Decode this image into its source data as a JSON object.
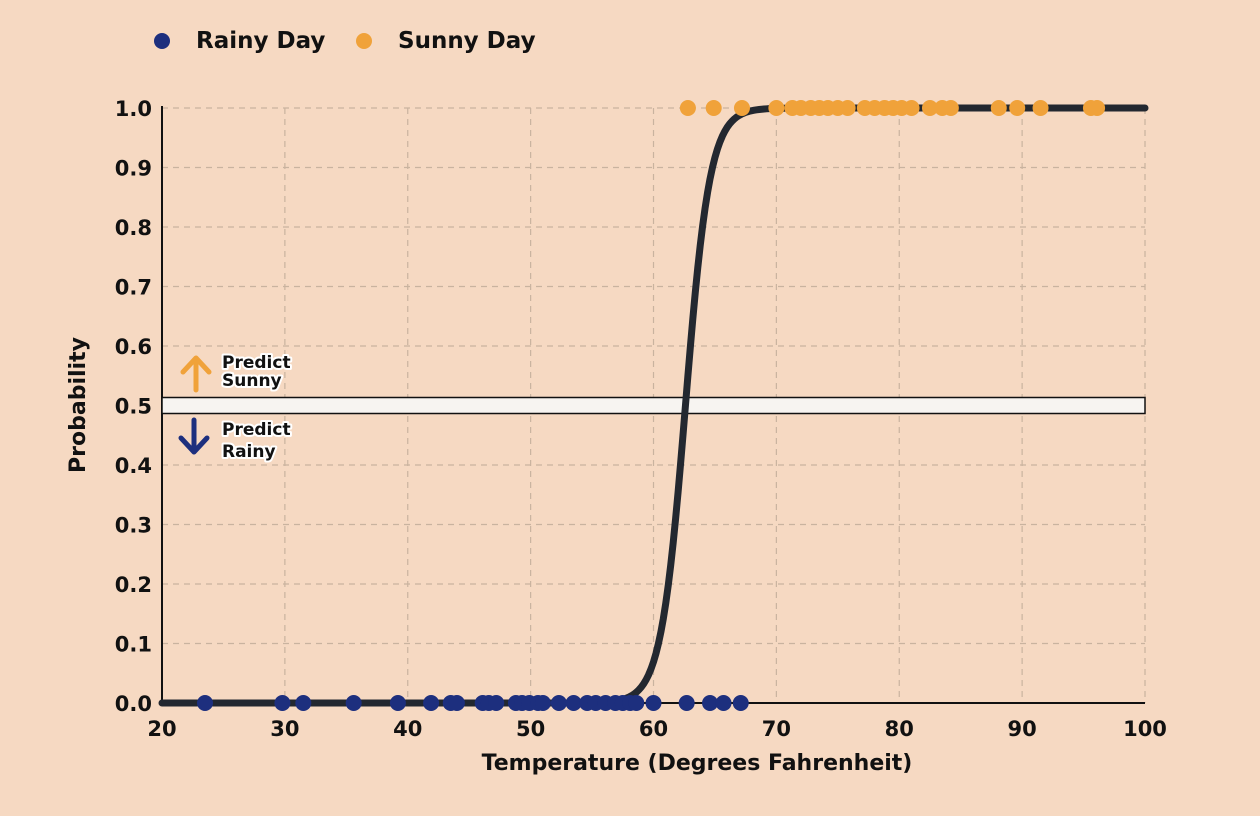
{
  "chart_data": {
    "type": "scatter",
    "xlabel": "Temperature (Degrees Fahrenheit)",
    "ylabel": "Probability",
    "xlim": [
      20,
      100
    ],
    "ylim": [
      0,
      1
    ],
    "x_ticks": [
      "20",
      "30",
      "40",
      "50",
      "60",
      "70",
      "80",
      "90",
      "100"
    ],
    "y_ticks": [
      "0.0",
      "0.1",
      "0.2",
      "0.3",
      "0.4",
      "0.5",
      "0.6",
      "0.7",
      "0.8",
      "0.9",
      "1.0"
    ],
    "grid": true,
    "legend_position": "top-left",
    "threshold": 0.5,
    "series": [
      {
        "name": "Rainy Day",
        "color": "#1d2f7e",
        "y": 0,
        "x": [
          23.5,
          29.8,
          31.5,
          35.6,
          39.2,
          41.9,
          43.5,
          44.0,
          46.1,
          46.6,
          47.2,
          48.8,
          49.3,
          49.9,
          50.6,
          51.0,
          52.3,
          53.5,
          54.6,
          55.3,
          56.1,
          56.9,
          57.5,
          58.1,
          58.6,
          60.0,
          62.7,
          64.6,
          65.7,
          67.1
        ]
      },
      {
        "name": "Sunny Day",
        "color": "#f0a23a",
        "y": 1,
        "x": [
          62.8,
          64.9,
          67.2,
          70.0,
          71.3,
          72.0,
          72.8,
          73.5,
          74.2,
          75.0,
          75.8,
          77.2,
          78.0,
          78.8,
          79.5,
          80.2,
          81.0,
          82.5,
          83.5,
          84.2,
          88.1,
          89.6,
          91.5,
          95.6,
          96.1
        ]
      },
      {
        "name": "",
        "type": "line",
        "color": "#232830",
        "model": "logistic",
        "midpoint": 62.6,
        "steepness": 1.0
      }
    ]
  },
  "annotations": {
    "predict_sunny": [
      "Predict",
      "Sunny"
    ],
    "predict_rainy": [
      "Predict",
      "Rainy"
    ],
    "sunny_color": "#f0a23a",
    "rainy_color": "#1d2f7e"
  }
}
